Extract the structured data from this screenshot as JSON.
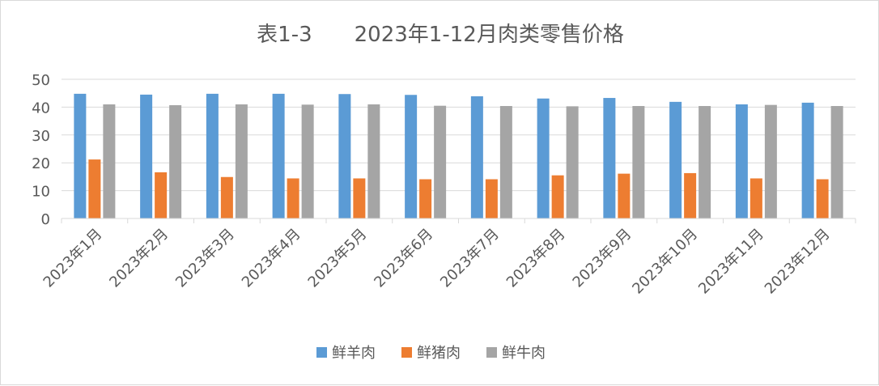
{
  "chart_data": {
    "type": "bar",
    "title": "表1-3　　2023年1-12月肉类零售价格",
    "xlabel": "",
    "ylabel": "",
    "ylim": [
      0,
      50
    ],
    "yticks": [
      0,
      10,
      20,
      30,
      40,
      50
    ],
    "grid": true,
    "legend_position": "bottom",
    "categories": [
      "2023年1月",
      "2023年2月",
      "2023年3月",
      "2023年4月",
      "2023年5月",
      "2023年6月",
      "2023年7月",
      "2023年8月",
      "2023年9月",
      "2023年10月",
      "2023年11月",
      "2023年12月"
    ],
    "series": [
      {
        "name": "鲜羊肉",
        "color": "#5b9bd5",
        "values": [
          44.8,
          44.5,
          44.8,
          44.8,
          44.7,
          44.4,
          43.9,
          43.1,
          43.3,
          41.9,
          41.0,
          41.6
        ]
      },
      {
        "name": "鲜猪肉",
        "color": "#ed7d31",
        "values": [
          21.2,
          16.6,
          14.9,
          14.4,
          14.4,
          14.1,
          14.1,
          15.5,
          16.1,
          16.3,
          14.4,
          14.1
        ]
      },
      {
        "name": "鲜牛肉",
        "color": "#a5a5a5",
        "values": [
          41.0,
          40.7,
          41.0,
          40.9,
          41.0,
          40.5,
          40.4,
          40.3,
          40.4,
          40.4,
          40.8,
          40.4
        ]
      }
    ]
  }
}
